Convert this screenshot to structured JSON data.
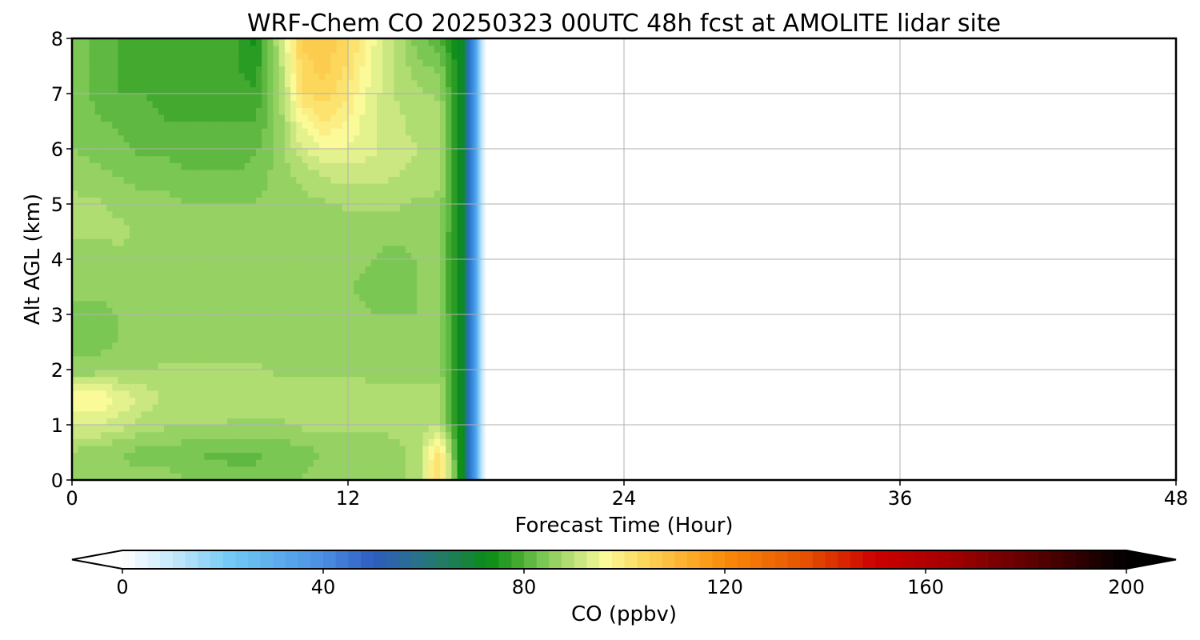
{
  "chart_data": {
    "type": "heatmap",
    "title": "WRF-Chem CO  20250323 00UTC 48h fcst at AMOLITE lidar site",
    "xlabel": "Forecast Time (Hour)",
    "ylabel": "Alt AGL (km)",
    "xlim": [
      0,
      48
    ],
    "ylim": [
      0,
      8
    ],
    "x_ticks": [
      0,
      12,
      24,
      36,
      48
    ],
    "y_ticks": [
      0,
      1,
      2,
      3,
      4,
      5,
      6,
      7,
      8
    ],
    "grid": true,
    "data_extent_hours": 18,
    "x": [
      0,
      1,
      2,
      3,
      4,
      5,
      6,
      7,
      8,
      9,
      10,
      11,
      12,
      13,
      14,
      15,
      16,
      17
    ],
    "y": [
      0,
      0.5,
      1,
      1.5,
      2,
      2.5,
      3,
      3.5,
      4,
      4.5,
      5,
      5.5,
      6,
      6.5,
      7,
      7.5,
      8
    ],
    "z": [
      [
        86,
        87,
        86,
        86,
        86,
        85,
        84,
        83,
        83,
        84,
        85,
        86,
        86,
        86,
        87,
        88,
        104,
        70
      ],
      [
        87,
        86,
        85,
        84,
        84,
        83,
        82,
        82,
        82,
        83,
        84,
        85,
        85,
        86,
        87,
        88,
        103,
        70
      ],
      [
        92,
        93,
        91,
        89,
        88,
        88,
        88,
        87,
        87,
        87,
        88,
        88,
        88,
        88,
        88,
        88,
        90,
        70
      ],
      [
        97,
        98,
        95,
        92,
        90,
        90,
        89,
        89,
        89,
        89,
        89,
        90,
        89,
        88,
        88,
        88,
        88,
        70
      ],
      [
        86,
        86,
        87,
        87,
        88,
        88,
        88,
        88,
        88,
        87,
        87,
        87,
        87,
        87,
        87,
        87,
        87,
        70
      ],
      [
        84,
        84,
        85,
        86,
        86,
        86,
        86,
        86,
        86,
        86,
        86,
        86,
        86,
        85,
        86,
        86,
        86,
        70
      ],
      [
        84,
        84,
        85,
        86,
        86,
        86,
        85,
        86,
        86,
        86,
        86,
        86,
        86,
        85,
        85,
        85,
        86,
        70
      ],
      [
        86,
        86,
        86,
        87,
        87,
        87,
        86,
        86,
        86,
        86,
        86,
        86,
        85,
        84,
        84,
        85,
        85,
        70
      ],
      [
        85,
        86,
        87,
        87,
        87,
        87,
        86,
        86,
        85,
        86,
        86,
        86,
        86,
        85,
        84,
        85,
        85,
        70
      ],
      [
        88,
        88,
        88,
        87,
        86,
        86,
        85,
        85,
        85,
        85,
        86,
        86,
        86,
        86,
        86,
        86,
        86,
        70
      ],
      [
        88,
        88,
        87,
        86,
        86,
        85,
        85,
        85,
        85,
        86,
        87,
        87,
        88,
        88,
        88,
        87,
        87,
        70
      ],
      [
        87,
        86,
        85,
        84,
        84,
        83,
        83,
        83,
        84,
        86,
        88,
        90,
        91,
        91,
        90,
        89,
        88,
        70
      ],
      [
        85,
        84,
        83,
        82,
        82,
        81,
        80,
        80,
        82,
        86,
        92,
        95,
        95,
        93,
        91,
        90,
        89,
        70
      ],
      [
        85,
        83,
        82,
        81,
        80,
        80,
        80,
        80,
        80,
        86,
        96,
        100,
        97,
        93,
        91,
        89,
        88,
        70
      ],
      [
        84,
        82,
        80,
        80,
        79,
        79,
        80,
        78,
        78,
        86,
        102,
        104,
        100,
        94,
        90,
        88,
        87,
        70
      ],
      [
        84,
        82,
        80,
        79,
        79,
        79,
        79,
        78,
        76,
        88,
        104,
        106,
        102,
        95,
        90,
        86,
        84,
        70
      ],
      [
        84,
        82,
        80,
        80,
        80,
        79,
        80,
        78,
        74,
        90,
        106,
        107,
        103,
        96,
        90,
        84,
        80,
        70
      ]
    ],
    "colorbar": {
      "label": "CO  (ppbv)",
      "min": 0,
      "max": 200,
      "step": 2.5,
      "ticks": [
        0,
        40,
        80,
        120,
        160,
        200
      ],
      "extend": "both",
      "stops": [
        {
          "v": 0,
          "c": "#ffffff"
        },
        {
          "v": 10,
          "c": "#c6e8fa"
        },
        {
          "v": 22,
          "c": "#6ec8f5"
        },
        {
          "v": 40,
          "c": "#4a8fe2"
        },
        {
          "v": 50,
          "c": "#2f5cc0"
        },
        {
          "v": 58,
          "c": "#2a6f8f"
        },
        {
          "v": 66,
          "c": "#1d7f54"
        },
        {
          "v": 73,
          "c": "#0a8c16"
        },
        {
          "v": 78,
          "c": "#3aa52a"
        },
        {
          "v": 84,
          "c": "#7ec855"
        },
        {
          "v": 90,
          "c": "#bde27a"
        },
        {
          "v": 96,
          "c": "#fbfb9a"
        },
        {
          "v": 104,
          "c": "#fcd65a"
        },
        {
          "v": 112,
          "c": "#fcb12e"
        },
        {
          "v": 120,
          "c": "#f98c0a"
        },
        {
          "v": 136,
          "c": "#e65100"
        },
        {
          "v": 150,
          "c": "#cc0000"
        },
        {
          "v": 165,
          "c": "#a30000"
        },
        {
          "v": 182,
          "c": "#5a0000"
        },
        {
          "v": 200,
          "c": "#000000"
        }
      ]
    }
  }
}
